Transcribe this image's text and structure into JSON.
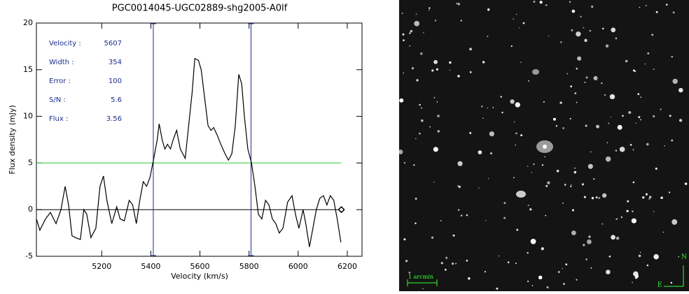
{
  "chart_data": {
    "type": "line",
    "title": "PGC0014045-UGC02889-shg2005-A0lf",
    "xlabel": "Velocity (km/s)",
    "ylabel": "Flux density (mJy)",
    "xlim": [
      4934,
      6260
    ],
    "ylim": [
      -5,
      20
    ],
    "xticks": [
      5200,
      5400,
      5600,
      5800,
      6000,
      6200
    ],
    "yticks": [
      -5,
      0,
      5,
      10,
      15,
      20
    ],
    "annotations": [
      {
        "label": "Velocity :",
        "value": "5607"
      },
      {
        "label": "Width :",
        "value": "354"
      },
      {
        "label": "Error :",
        "value": "100"
      },
      {
        "label": "S/N :",
        "value": "5.6"
      },
      {
        "label": "Flux :",
        "value": "3.56"
      }
    ],
    "series": [
      {
        "color": "#000000",
        "x": [
          4934,
          4948,
          4971,
          4991,
          5014,
          5034,
          5051,
          5065,
          5079,
          5093,
          5113,
          5127,
          5139,
          5156,
          5176,
          5193,
          5207,
          5221,
          5241,
          5261,
          5275,
          5292,
          5312,
          5326,
          5341,
          5355,
          5369,
          5383,
          5397,
          5412,
          5426,
          5434,
          5446,
          5457,
          5468,
          5480,
          5491,
          5505,
          5520,
          5540,
          5554,
          5568,
          5579,
          5594,
          5605,
          5619,
          5633,
          5645,
          5656,
          5670,
          5685,
          5702,
          5716,
          5730,
          5744,
          5758,
          5770,
          5781,
          5795,
          5810,
          5824,
          5838,
          5852,
          5867,
          5881,
          5895,
          5909,
          5923,
          5938,
          5957,
          5975,
          5989,
          6003,
          6020,
          6031,
          6046,
          6060,
          6074,
          6088,
          6103,
          6117,
          6131,
          6145,
          6159,
          6174
        ],
        "values": [
          -1,
          -2.2,
          -1,
          -0.3,
          -1.5,
          0,
          2.5,
          0.5,
          -2.8,
          -3,
          -3.2,
          0,
          -0.5,
          -3,
          -2,
          2.5,
          3.6,
          1,
          -1.5,
          0.3,
          -1,
          -1.2,
          1,
          0.5,
          -1.5,
          1,
          3,
          2.5,
          3.5,
          5.5,
          7.5,
          9.2,
          7.5,
          6.5,
          7,
          6.5,
          7.5,
          8.5,
          6.5,
          5.5,
          9,
          12.5,
          16.2,
          16,
          15,
          12,
          9,
          8.5,
          8.8,
          8,
          7,
          6,
          5.3,
          6,
          9,
          14.5,
          13.5,
          10,
          6.5,
          5,
          2.5,
          -0.5,
          -1,
          1,
          0.5,
          -1,
          -1.5,
          -2.5,
          -2,
          0.8,
          1.5,
          -0.5,
          -2,
          0,
          -1.5,
          -4,
          -2,
          0,
          1.2,
          1.5,
          0.5,
          1.5,
          1,
          -1,
          -3.5
        ]
      }
    ],
    "velocity_limits": [
      5410,
      5808
    ],
    "velocity_limit_color": "#1c2f8f",
    "threshold": 5,
    "threshold_color": "#33cc33",
    "baseline": 0,
    "baseline_end": 6176,
    "marker": {
      "x": 6176,
      "y": 0
    }
  },
  "image": {
    "scale_label": "1 arcmin",
    "north": "N",
    "east": "E"
  }
}
